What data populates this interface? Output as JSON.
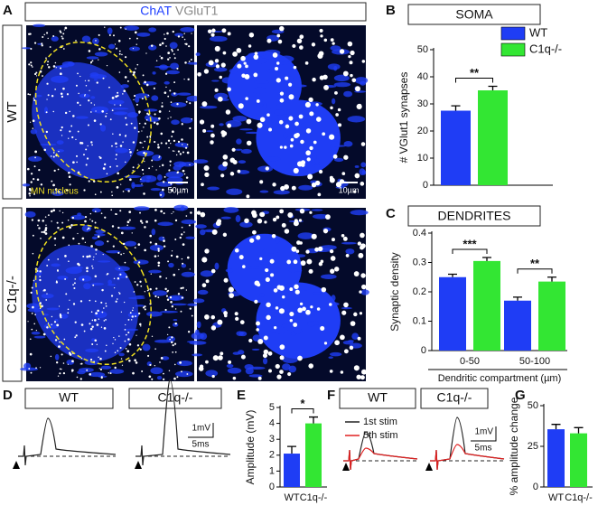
{
  "panels": {
    "A": {
      "letter": "A",
      "stain1": "ChAT",
      "stain2": "VGluT1",
      "row1": "WT",
      "row2": "C1q-/-",
      "region": "MN nucleus",
      "scale1": "50µm",
      "scale2": "10µm"
    },
    "B": {
      "letter": "B"
    },
    "C": {
      "letter": "C"
    },
    "D": {
      "letter": "D",
      "label1": "WT",
      "label2": "C1q-/-",
      "scale_v": "1mV",
      "scale_t": "5ms"
    },
    "E": {
      "letter": "E"
    },
    "F": {
      "letter": "F",
      "label1": "WT",
      "label2": "C1q-/-",
      "trace1": "1st stim",
      "trace2": "5th stim",
      "scale_v": "1mV",
      "scale_t": "5ms"
    },
    "G": {
      "letter": "G"
    }
  },
  "chart_data": [
    {
      "type": "bar",
      "title": "SOMA",
      "y_label": "# VGlut1 synapses",
      "legend": "upper right",
      "series": [
        {
          "name": "WT",
          "color": "#1f3df5",
          "values": [
            27.5
          ],
          "errors": [
            1.8
          ]
        },
        {
          "name": "C1q-/-",
          "color": "#33e633",
          "values": [
            35
          ],
          "errors": [
            1.5
          ]
        }
      ],
      "annotations": [
        "**"
      ],
      "ylim": [
        0,
        50
      ],
      "yticks": [
        0,
        10,
        20,
        30,
        40,
        50
      ]
    },
    {
      "type": "bar",
      "title": "DENDRITES",
      "y_label": "Synaptic density",
      "x_label": "Dendritic compartment (µm)",
      "categories": [
        "0-50",
        "50-100"
      ],
      "series": [
        {
          "name": "WT",
          "color": "#1f3df5",
          "values": [
            0.25,
            0.17
          ],
          "errors": [
            0.01,
            0.012
          ]
        },
        {
          "name": "C1q-/-",
          "color": "#33e633",
          "values": [
            0.305,
            0.235
          ],
          "errors": [
            0.012,
            0.015
          ]
        }
      ],
      "annotations": [
        "***",
        "**"
      ],
      "ylim": [
        0,
        0.4
      ],
      "yticks": [
        0,
        0.1,
        0.2,
        0.3,
        0.4
      ]
    },
    {
      "type": "bar",
      "y_label": "Amplitude (mV)",
      "categories": [
        "WT",
        "C1q-/-"
      ],
      "values": [
        2.1,
        4.0
      ],
      "errors": [
        0.45,
        0.4
      ],
      "colors": [
        "#1f3df5",
        "#33e633"
      ],
      "annotations": [
        "*"
      ],
      "ylim": [
        0,
        5
      ],
      "yticks": [
        0,
        1,
        2,
        3,
        4,
        5
      ]
    },
    {
      "type": "bar",
      "y_label": "% amplitude change",
      "categories": [
        "WT",
        "C1q-/-"
      ],
      "values": [
        35.5,
        33
      ],
      "errors": [
        3,
        3.5
      ],
      "colors": [
        "#1f3df5",
        "#33e633"
      ],
      "ylim": [
        0,
        50
      ],
      "yticks": [
        0,
        25,
        50
      ]
    }
  ]
}
